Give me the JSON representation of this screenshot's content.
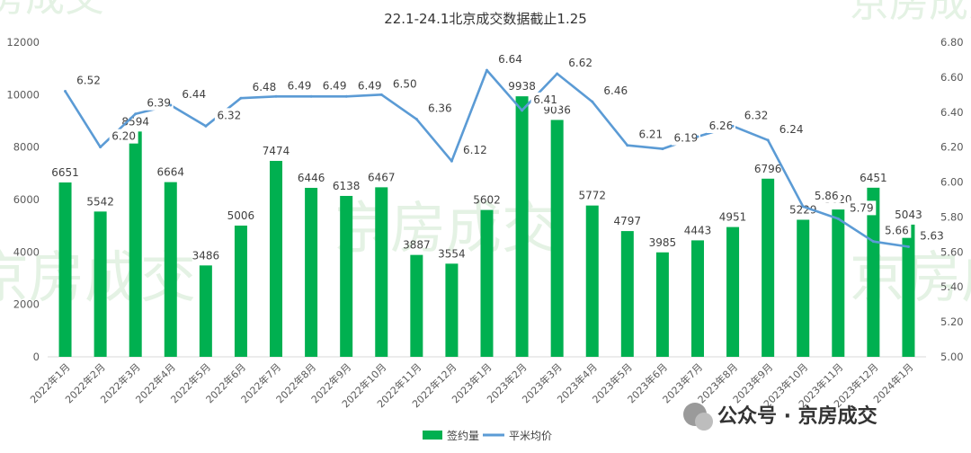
{
  "chart_data": {
    "type": "bar+line",
    "title": "22.1-24.1北京成交数据截止1.25",
    "categories": [
      "2022年1月",
      "2022年2月",
      "2022年3月",
      "2022年4月",
      "2022年5月",
      "2022年6月",
      "2022年7月",
      "2022年8月",
      "2022年9月",
      "2022年10月",
      "2022年11月",
      "2022年12月",
      "2023年1月",
      "2023年2月",
      "2023年3月",
      "2023年4月",
      "2023年5月",
      "2023年6月",
      "2023年7月",
      "2023年8月",
      "2023年9月",
      "2023年10月",
      "2023年11月",
      "2023年12月",
      "2024年1月"
    ],
    "series": [
      {
        "name": "签约量",
        "type": "bar",
        "axis": "left",
        "values": [
          6651,
          5542,
          8594,
          6664,
          3486,
          5006,
          7474,
          6446,
          6138,
          6467,
          3887,
          3554,
          5602,
          9938,
          9036,
          5772,
          4797,
          3985,
          4443,
          4951,
          6796,
          5229,
          5620,
          6451,
          5043
        ]
      },
      {
        "name": "平米均价",
        "type": "line",
        "axis": "right",
        "values": [
          6.52,
          6.2,
          6.39,
          6.44,
          6.32,
          6.48,
          6.49,
          6.49,
          6.49,
          6.5,
          6.36,
          6.12,
          6.64,
          6.41,
          6.62,
          6.46,
          6.21,
          6.19,
          6.26,
          6.32,
          6.24,
          5.86,
          5.79,
          5.66,
          5.63
        ]
      }
    ],
    "y_left": {
      "min": 0,
      "max": 12000,
      "ticks": [
        "0",
        "2000",
        "4000",
        "6000",
        "8000",
        "10000",
        "12000"
      ]
    },
    "y_right": {
      "min": 5.0,
      "max": 6.8,
      "ticks": [
        "5.00",
        "5.20",
        "5.40",
        "5.60",
        "5.80",
        "6.00",
        "6.20",
        "6.40",
        "6.60",
        "6.80"
      ]
    },
    "legend_position": "bottom",
    "colors": {
      "bar": "#00b050",
      "line": "#5b9bd5"
    }
  },
  "watermark": {
    "text": "京房成交"
  },
  "brand": {
    "text": "公众号 · 京房成交"
  }
}
